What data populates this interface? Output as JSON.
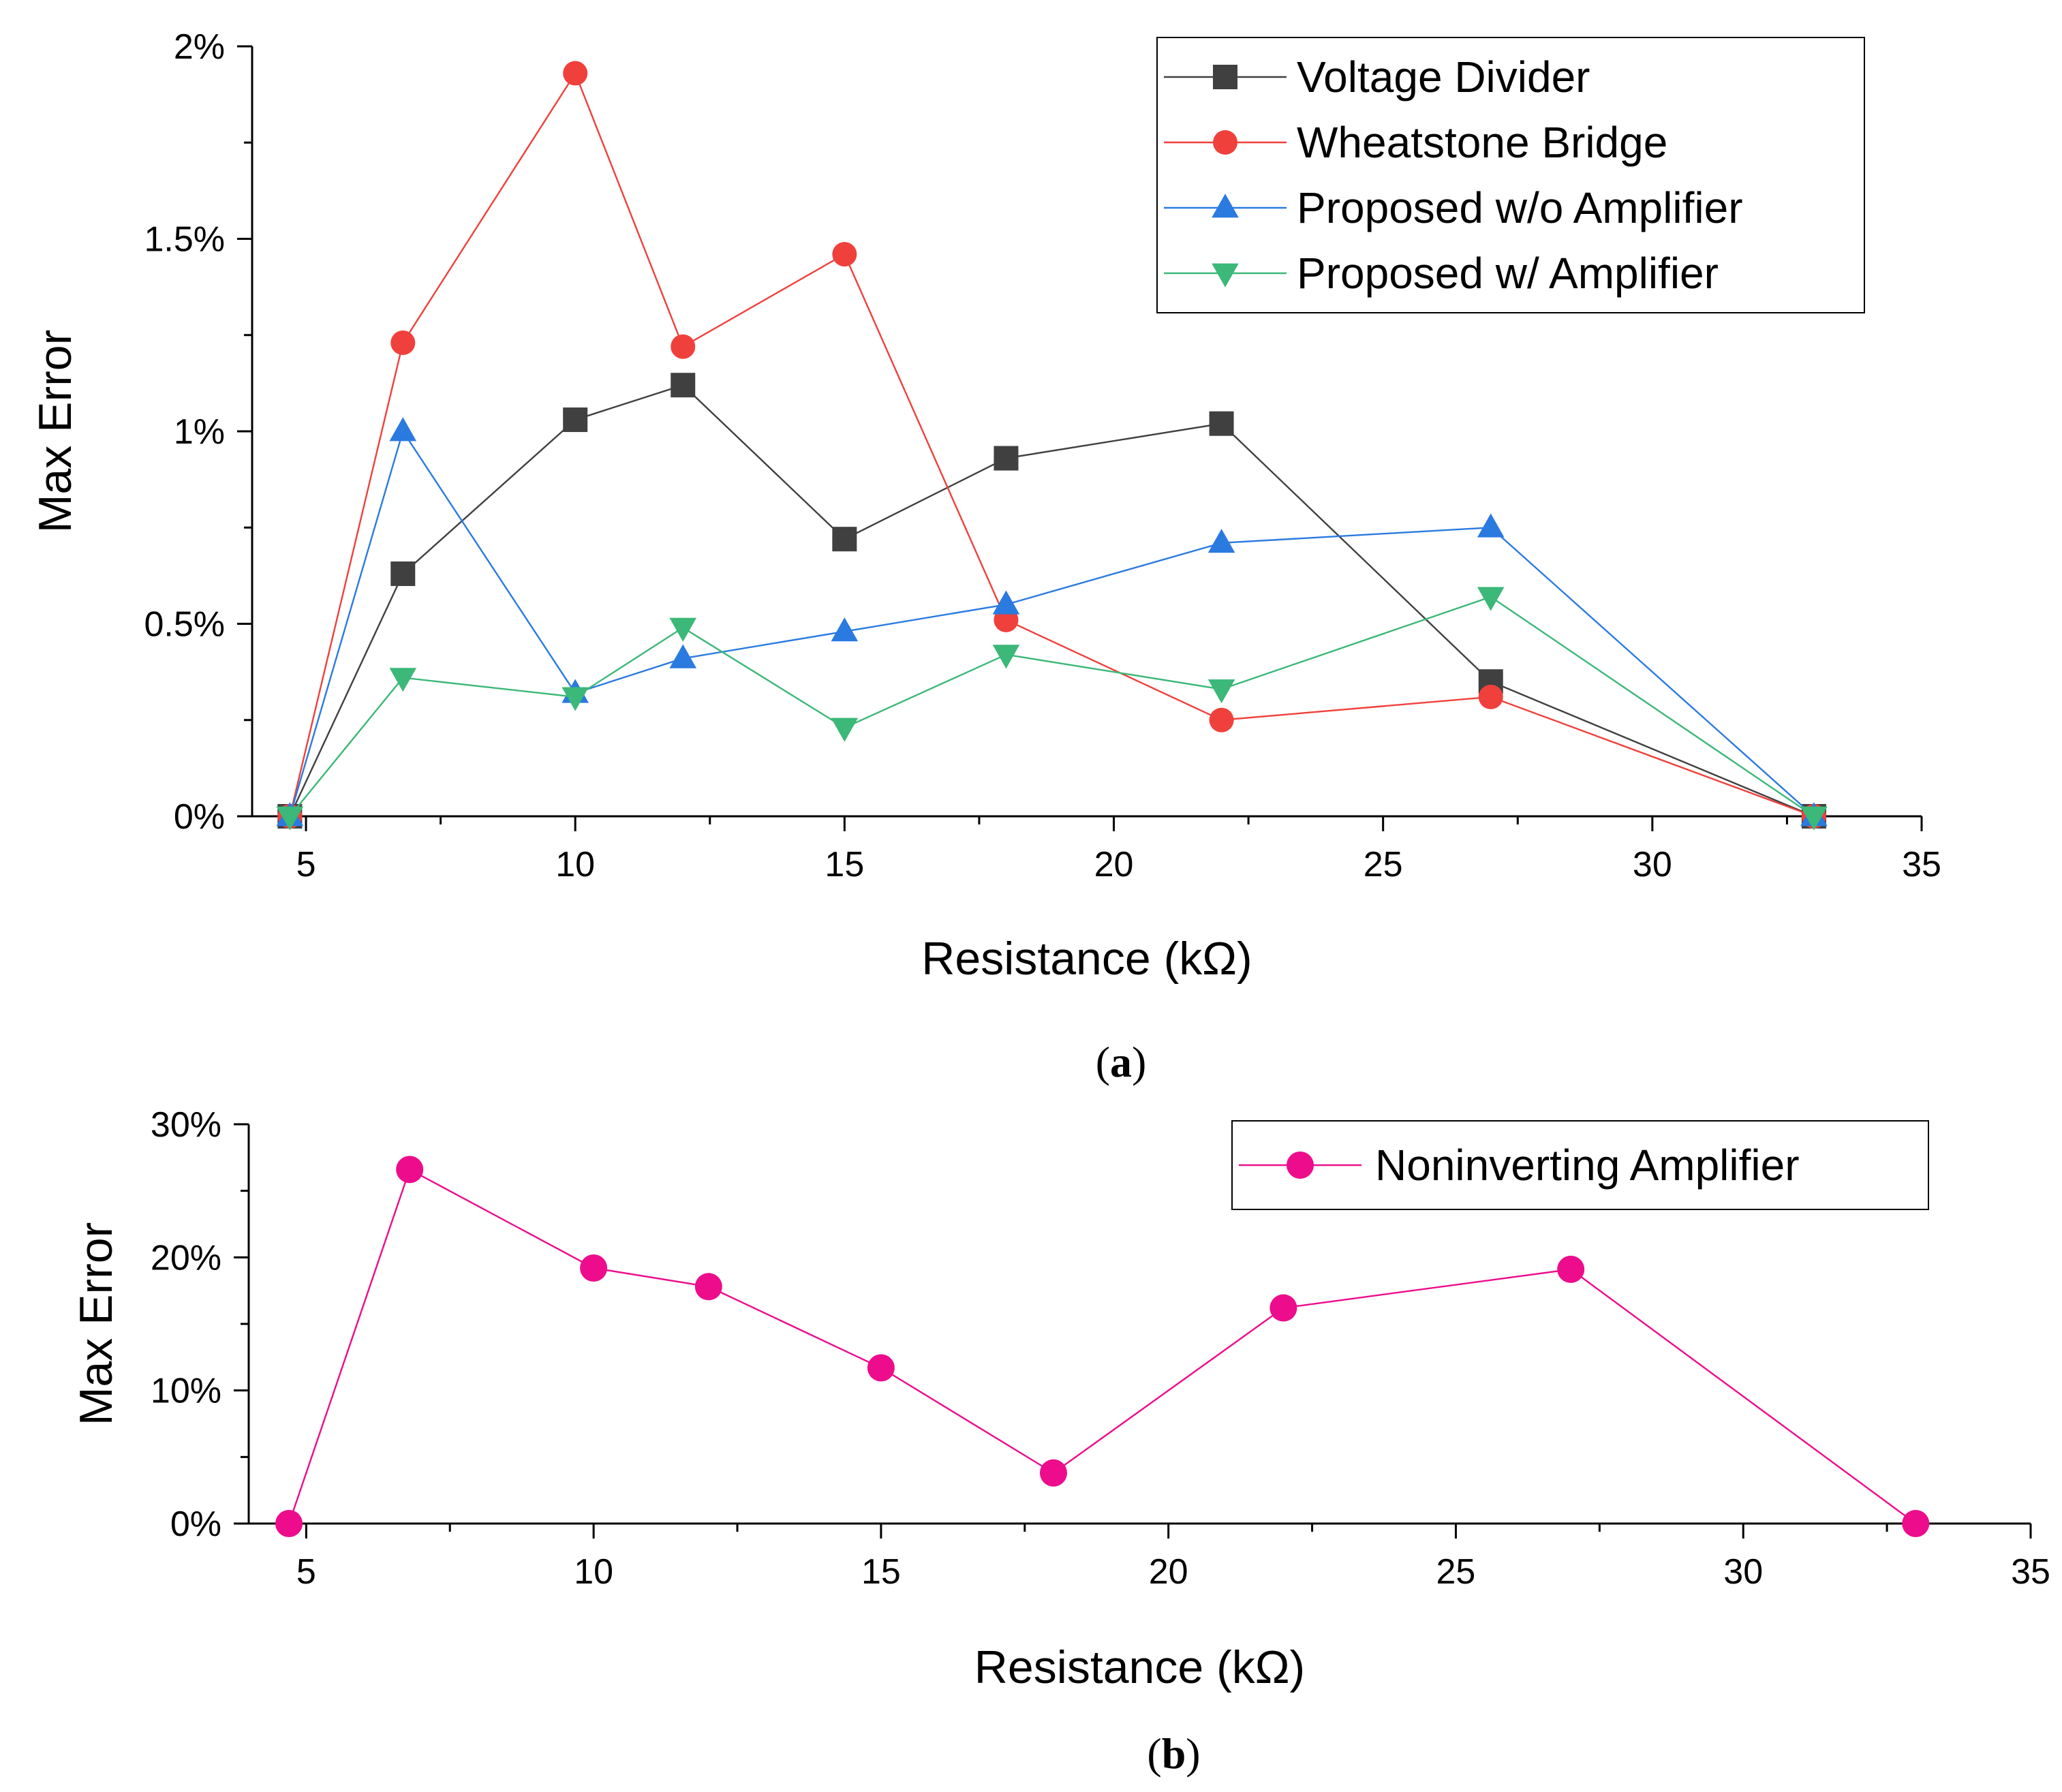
{
  "chart_data": [
    {
      "panel": "a",
      "type": "line",
      "panel_label_paren_open": "(",
      "panel_label_letter": "a",
      "panel_label_paren_close": ")",
      "xlabel": "Resistance (kΩ)",
      "ylabel": "Max Error",
      "xlim": [
        4,
        35
      ],
      "ylim": [
        0,
        2
      ],
      "xticks": [
        5,
        10,
        15,
        20,
        25,
        30,
        35
      ],
      "xtick_labels": [
        "5",
        "10",
        "15",
        "20",
        "25",
        "30",
        "35"
      ],
      "yticks": [
        0,
        0.5,
        1,
        1.5,
        2
      ],
      "ytick_labels": [
        "0%",
        "0.5%",
        "1%",
        "1.5%",
        "2%"
      ],
      "legend_position": "top-right",
      "x": [
        4.7,
        6.8,
        10,
        12,
        15,
        18,
        22,
        27,
        33
      ],
      "series": [
        {
          "name": "Voltage Divider",
          "marker": "square",
          "color": "#404040",
          "values": [
            0,
            0.63,
            1.03,
            1.12,
            0.72,
            0.93,
            1.02,
            0.35,
            0
          ]
        },
        {
          "name": "Wheatstone Bridge",
          "marker": "circle",
          "color": "#f0403c",
          "values": [
            0,
            1.23,
            1.93,
            1.22,
            1.46,
            0.51,
            0.25,
            0.31,
            0
          ]
        },
        {
          "name": "Proposed w/o Amplifier",
          "marker": "triangle-up",
          "color": "#2a7ae0",
          "values": [
            0,
            1.0,
            0.32,
            0.41,
            0.48,
            0.55,
            0.71,
            0.75,
            0
          ]
        },
        {
          "name": "Proposed w/ Amplifier",
          "marker": "triangle-down",
          "color": "#3cb878",
          "values": [
            0,
            0.36,
            0.31,
            0.49,
            0.23,
            0.42,
            0.33,
            0.57,
            0
          ]
        }
      ]
    },
    {
      "panel": "b",
      "type": "line",
      "panel_label_paren_open": "(",
      "panel_label_letter": "b",
      "panel_label_paren_close": ")",
      "xlabel": "Resistance (kΩ)",
      "ylabel": "Max Error",
      "xlim": [
        4,
        35
      ],
      "ylim": [
        0,
        30
      ],
      "xticks": [
        5,
        10,
        15,
        20,
        25,
        30,
        35
      ],
      "xtick_labels": [
        "5",
        "10",
        "15",
        "20",
        "25",
        "30",
        "35"
      ],
      "yticks": [
        0,
        10,
        20,
        30
      ],
      "ytick_labels": [
        "0%",
        "10%",
        "20%",
        "30%"
      ],
      "legend_position": "top-right",
      "x": [
        4.7,
        6.8,
        10,
        12,
        15,
        18,
        22,
        27,
        33
      ],
      "series": [
        {
          "name": "Noninverting Amplifier",
          "marker": "circle",
          "color": "#ec0c8c",
          "values": [
            0,
            26.6,
            19.2,
            17.8,
            11.7,
            3.8,
            16.2,
            19.1,
            0
          ]
        }
      ]
    }
  ]
}
